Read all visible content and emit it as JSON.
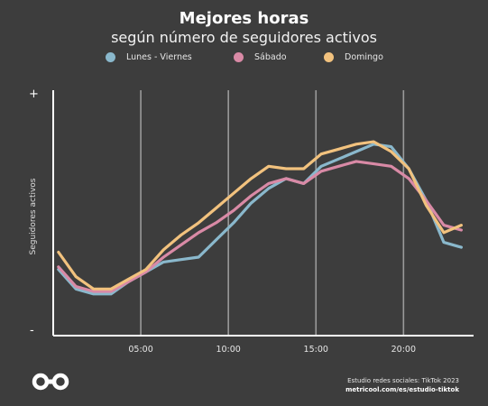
{
  "title": "Mejores horas",
  "subtitle": "según número de seguidores activos",
  "footer": {
    "line1": "Estudio redes sociales: TikTok 2023",
    "line2": "metricool.com/es/estudio-tiktok"
  },
  "logo_icon": "infinity-logo-icon",
  "chart_data": {
    "type": "line",
    "title": "Mejores horas",
    "subtitle": "según número de seguidores activos",
    "ylabel": "Seguidores activos",
    "y_top_label": "+",
    "y_bottom_label": "-",
    "xlim": [
      0,
      24
    ],
    "ylim": [
      0,
      100
    ],
    "x_ticks": [
      5,
      10,
      15,
      20
    ],
    "x_tick_labels": [
      "05:00",
      "10:00",
      "15:00",
      "20:00"
    ],
    "vertical_gridlines": true,
    "legend_position": "top",
    "x": [
      0.3,
      1.3,
      2.3,
      3.3,
      4.3,
      5.3,
      6.3,
      7.3,
      8.3,
      9.3,
      10.3,
      11.3,
      12.3,
      13.3,
      14.3,
      15.3,
      16.3,
      17.3,
      18.3,
      19.3,
      20.3,
      21.3,
      22.3,
      23.3
    ],
    "series": [
      {
        "name": "Lunes - Viernes",
        "color": "#8ab8cc",
        "values": [
          27,
          19,
          17,
          17,
          22,
          26,
          30,
          31,
          32,
          39,
          46,
          54,
          60,
          64,
          62,
          69,
          72,
          75,
          78,
          77,
          68,
          55,
          38,
          36
        ]
      },
      {
        "name": "Sábado",
        "color": "#d98aa6",
        "values": [
          28,
          20,
          18,
          18,
          22,
          26,
          32,
          37,
          42,
          46,
          51,
          57,
          62,
          64,
          62,
          67,
          69,
          71,
          70,
          69,
          64,
          55,
          45,
          43
        ]
      },
      {
        "name": "Domingo",
        "color": "#f2c27e",
        "values": [
          34,
          24,
          19,
          19,
          23,
          27,
          35,
          41,
          46,
          52,
          58,
          64,
          69,
          68,
          68,
          74,
          76,
          78,
          79,
          75,
          68,
          53,
          42,
          45
        ]
      }
    ]
  }
}
